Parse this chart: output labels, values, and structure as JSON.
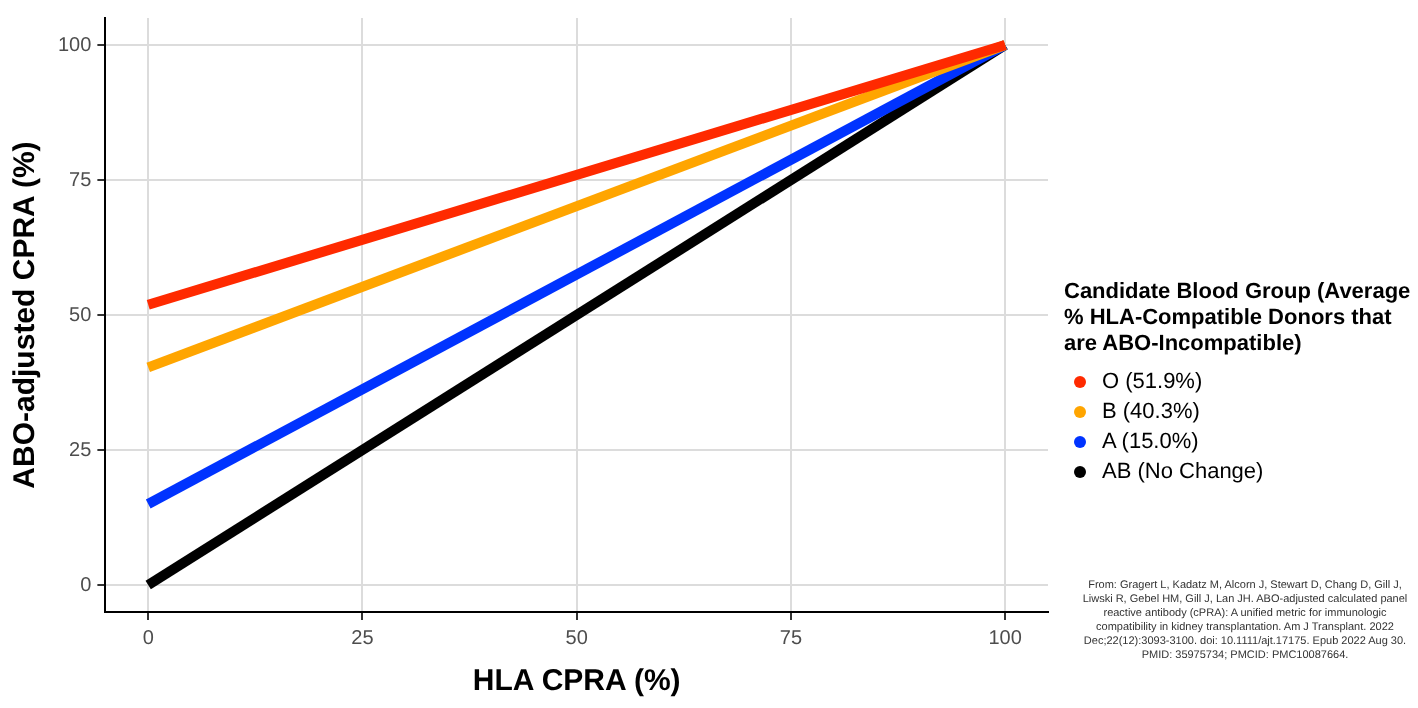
{
  "chart_data": {
    "type": "line",
    "xlabel": "HLA CPRA (%)",
    "ylabel": "ABO-adjusted CPRA (%)",
    "legend_title": "Candidate Blood Group (Average % HLA-Compatible Donors that are ABO-Incompatible)",
    "x": [
      0,
      100
    ],
    "series": [
      {
        "name": "O (51.9%)",
        "color": "#ff2a00",
        "values": [
          51.9,
          100
        ]
      },
      {
        "name": "B (40.3%)",
        "color": "#ffa500",
        "values": [
          40.3,
          100
        ]
      },
      {
        "name": "A (15.0%)",
        "color": "#0033ff",
        "values": [
          15.0,
          100
        ]
      },
      {
        "name": "AB (No Change)",
        "color": "#000000",
        "values": [
          0,
          100
        ]
      }
    ],
    "xlim": [
      -5,
      105
    ],
    "ylim": [
      -5,
      105
    ],
    "xticks": [
      0,
      25,
      50,
      75,
      100
    ],
    "yticks": [
      0,
      25,
      50,
      75,
      100
    ],
    "grid": true,
    "legend": "right",
    "marker": "none",
    "line_style": "solid",
    "annotations": [
      "From: Gragert L, Kadatz M, Alcorn J, Stewart D, Chang D, Gill J, Liwski R, Gebel HM, Gill J, Lan JH. ABO-adjusted calculated panel reactive antibody (cPRA): A unified metric for immunologic compatibility in kidney transplantation. Am J Transplant. 2022 Dec;22(12):3093-3100. doi: 10.1111/ajt.17175. Epub 2022 Aug 30. PMID: 35975734; PMCID: PMC10087664."
    ]
  }
}
